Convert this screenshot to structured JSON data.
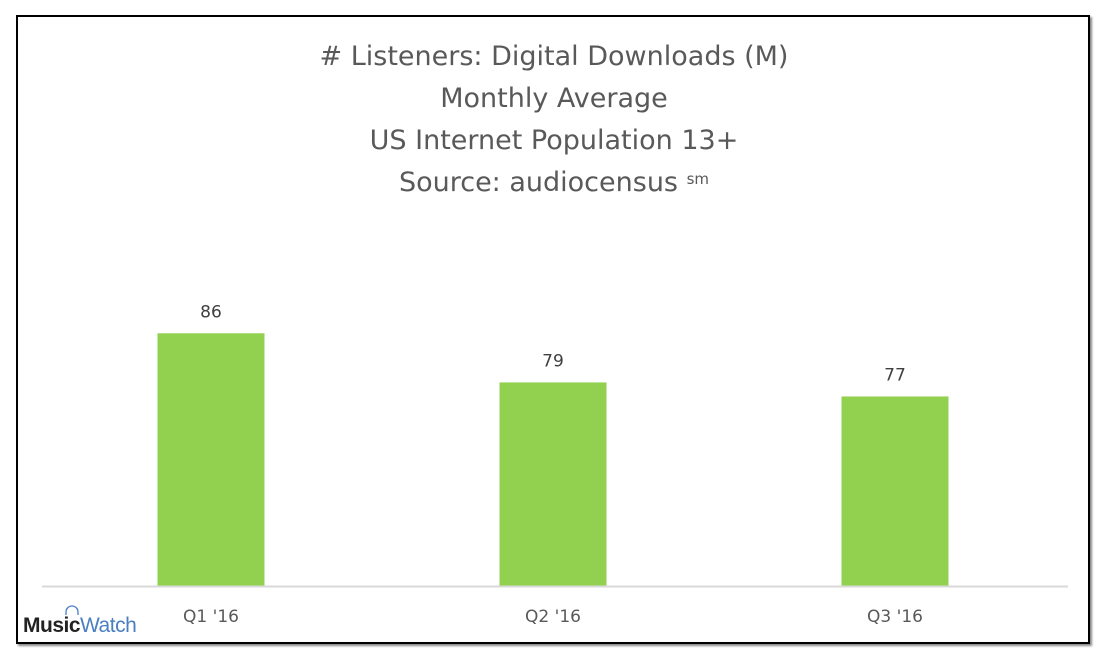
{
  "chart_data": {
    "type": "bar",
    "title_lines": [
      "# Listeners: Digital Downloads (M)",
      "Monthly Average",
      "US Internet Population 13+",
      "Source: audiocensus"
    ],
    "title_superscript": "sm",
    "categories": [
      "Q1 '16",
      "Q2 '16",
      "Q3 '16"
    ],
    "values": [
      86,
      79,
      77
    ],
    "data_labels": [
      "86",
      "79",
      "77"
    ],
    "xlabel": "",
    "ylabel": "",
    "ylim": [
      50,
      100
    ],
    "grid": false,
    "bar_color": "#92d050",
    "axis_color": "#d9d9d9",
    "text_color": "#595959"
  },
  "logo": {
    "part1": "Music",
    "part2": "Watch",
    "icon": "headphones-icon"
  }
}
